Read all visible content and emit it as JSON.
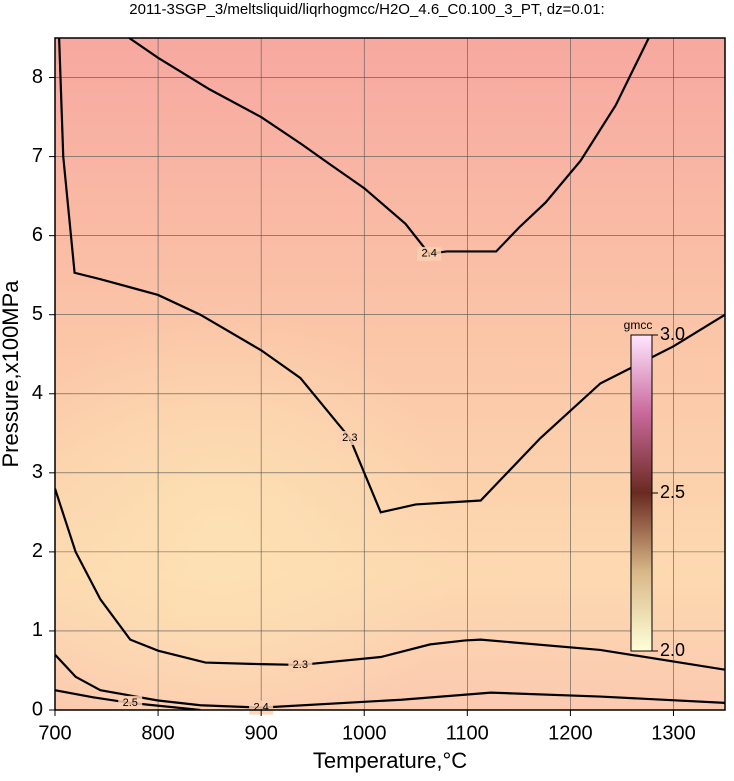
{
  "chart_data": {
    "type": "contour",
    "title": "2011-3SGP_3/meltsliquid/liqrhogmcc/H2O_4.6_C0.100_3_PT, dz=0.01:",
    "xlabel": "Temperature,°C",
    "ylabel": "Pressure,x100MPa",
    "xlim": [
      700,
      1350
    ],
    "ylim": [
      0,
      8.5
    ],
    "xticks": [
      700,
      800,
      900,
      1000,
      1100,
      1200,
      1300
    ],
    "yticks": [
      0,
      1,
      2,
      3,
      4,
      5,
      6,
      7,
      8
    ],
    "grid": true,
    "contours": [
      {
        "level": 2.4,
        "x": [
          772,
          800,
          850,
          900,
          940,
          967,
          1000,
          1040,
          1063,
          1080,
          1128,
          1150,
          1176,
          1210,
          1244,
          1276
        ],
        "y": [
          8.5,
          8.25,
          7.85,
          7.5,
          7.15,
          6.9,
          6.6,
          6.15,
          5.77,
          5.8,
          5.8,
          6.1,
          6.42,
          6.95,
          7.65,
          8.5
        ]
      },
      {
        "level": 2.3,
        "x": [
          704,
          708,
          719,
          744,
          800,
          841,
          900,
          938,
          986,
          1016,
          1050,
          1113,
          1171,
          1229,
          1300,
          1350
        ],
        "y": [
          8.5,
          7.0,
          5.53,
          5.45,
          5.25,
          5.0,
          4.55,
          4.2,
          3.44,
          2.5,
          2.6,
          2.65,
          3.44,
          4.13,
          4.6,
          5.0
        ]
      },
      {
        "level": 2.3,
        "x": [
          700,
          720,
          744,
          773,
          800,
          846,
          900,
          938,
          1016,
          1064,
          1098,
          1113,
          1229,
          1350
        ],
        "y": [
          2.8,
          2.0,
          1.4,
          0.89,
          0.75,
          0.6,
          0.58,
          0.57,
          0.67,
          0.83,
          0.88,
          0.89,
          0.76,
          0.51
        ]
      },
      {
        "level": 2.4,
        "x": [
          700,
          720,
          744,
          800,
          841,
          900,
          1036,
          1123,
          1229,
          1350
        ],
        "y": [
          0.7,
          0.42,
          0.25,
          0.12,
          0.06,
          0.03,
          0.13,
          0.22,
          0.17,
          0.09
        ]
      },
      {
        "level": 2.5,
        "x": [
          700,
          737,
          773,
          841
        ],
        "y": [
          0.25,
          0.16,
          0.09,
          0.0
        ]
      }
    ],
    "colorbar": {
      "label": "gmcc",
      "lim": [
        2,
        3
      ],
      "ticks": [
        {
          "value": 2,
          "label": "2.0"
        },
        2.5,
        {
          "value": 3,
          "label": "3.0"
        }
      ]
    }
  }
}
